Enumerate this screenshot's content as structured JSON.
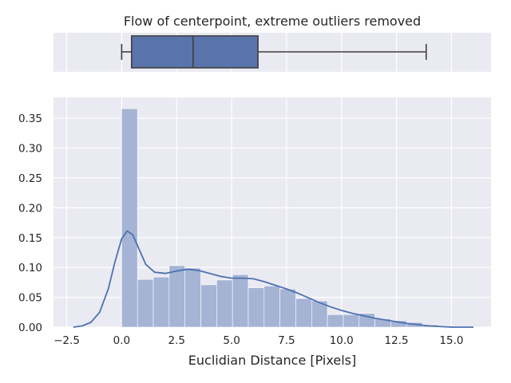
{
  "chart_data": {
    "type": "histogram+box+kde",
    "title": "Flow of centerpoint, extreme outliers removed",
    "xlabel": "Euclidian Distance [Pixels]",
    "ylabel": "",
    "xlim": [
      -3.1,
      16.8
    ],
    "ylim": [
      0.0,
      0.385
    ],
    "x_ticks": [
      -2.5,
      0.0,
      2.5,
      5.0,
      7.5,
      10.0,
      12.5,
      15.0
    ],
    "x_tick_labels": [
      "−2.5",
      "0.0",
      "2.5",
      "5.0",
      "7.5",
      "10.0",
      "12.5",
      "15.0"
    ],
    "y_ticks": [
      0.0,
      0.05,
      0.1,
      0.15,
      0.2,
      0.25,
      0.3,
      0.35
    ],
    "y_tick_labels": [
      "0.00",
      "0.05",
      "0.10",
      "0.15",
      "0.20",
      "0.25",
      "0.30",
      "0.35"
    ],
    "grid": true,
    "box": {
      "whisker_low": 0.0,
      "q1": 0.45,
      "median": 3.25,
      "q3": 6.2,
      "whisker_high": 13.85,
      "color": "#5874ab"
    },
    "histogram": {
      "bin_edges": [
        0.0,
        0.72,
        1.44,
        2.16,
        2.88,
        3.6,
        4.32,
        5.04,
        5.76,
        6.48,
        7.2,
        7.92,
        8.64,
        9.36,
        10.08,
        10.8,
        11.52,
        12.24,
        12.96,
        13.68,
        14.4,
        15.12,
        15.84,
        16.56
      ],
      "densities": [
        0.366,
        0.08,
        0.084,
        0.103,
        0.099,
        0.071,
        0.079,
        0.088,
        0.066,
        0.069,
        0.064,
        0.048,
        0.044,
        0.021,
        0.021,
        0.023,
        0.014,
        0.011,
        0.008,
        0.004,
        0.002,
        0.001,
        0.001
      ],
      "color": "#a5b4d4"
    },
    "kde": {
      "x": [
        -2.2,
        -1.8,
        -1.4,
        -1.0,
        -0.6,
        -0.3,
        0.0,
        0.25,
        0.5,
        0.8,
        1.1,
        1.5,
        2.0,
        2.5,
        3.0,
        3.5,
        4.0,
        4.5,
        5.0,
        5.5,
        6.0,
        6.5,
        7.0,
        7.5,
        8.0,
        8.5,
        9.0,
        9.5,
        10.0,
        10.5,
        11.0,
        11.5,
        12.0,
        12.5,
        13.0,
        13.5,
        14.0,
        14.5,
        15.0,
        15.5,
        16.0
      ],
      "y": [
        0.0,
        0.002,
        0.008,
        0.025,
        0.065,
        0.11,
        0.148,
        0.161,
        0.155,
        0.13,
        0.105,
        0.092,
        0.09,
        0.094,
        0.097,
        0.095,
        0.09,
        0.085,
        0.082,
        0.082,
        0.081,
        0.076,
        0.07,
        0.064,
        0.057,
        0.049,
        0.041,
        0.034,
        0.028,
        0.023,
        0.019,
        0.015,
        0.012,
        0.009,
        0.006,
        0.004,
        0.002,
        0.001,
        0.0,
        0.0,
        0.0
      ],
      "color": "#4c72b0"
    },
    "colors": {
      "background": "#eaeaf2",
      "grid": "#ffffff",
      "text": "#262626",
      "box_edge": "#3f3f3f"
    }
  }
}
